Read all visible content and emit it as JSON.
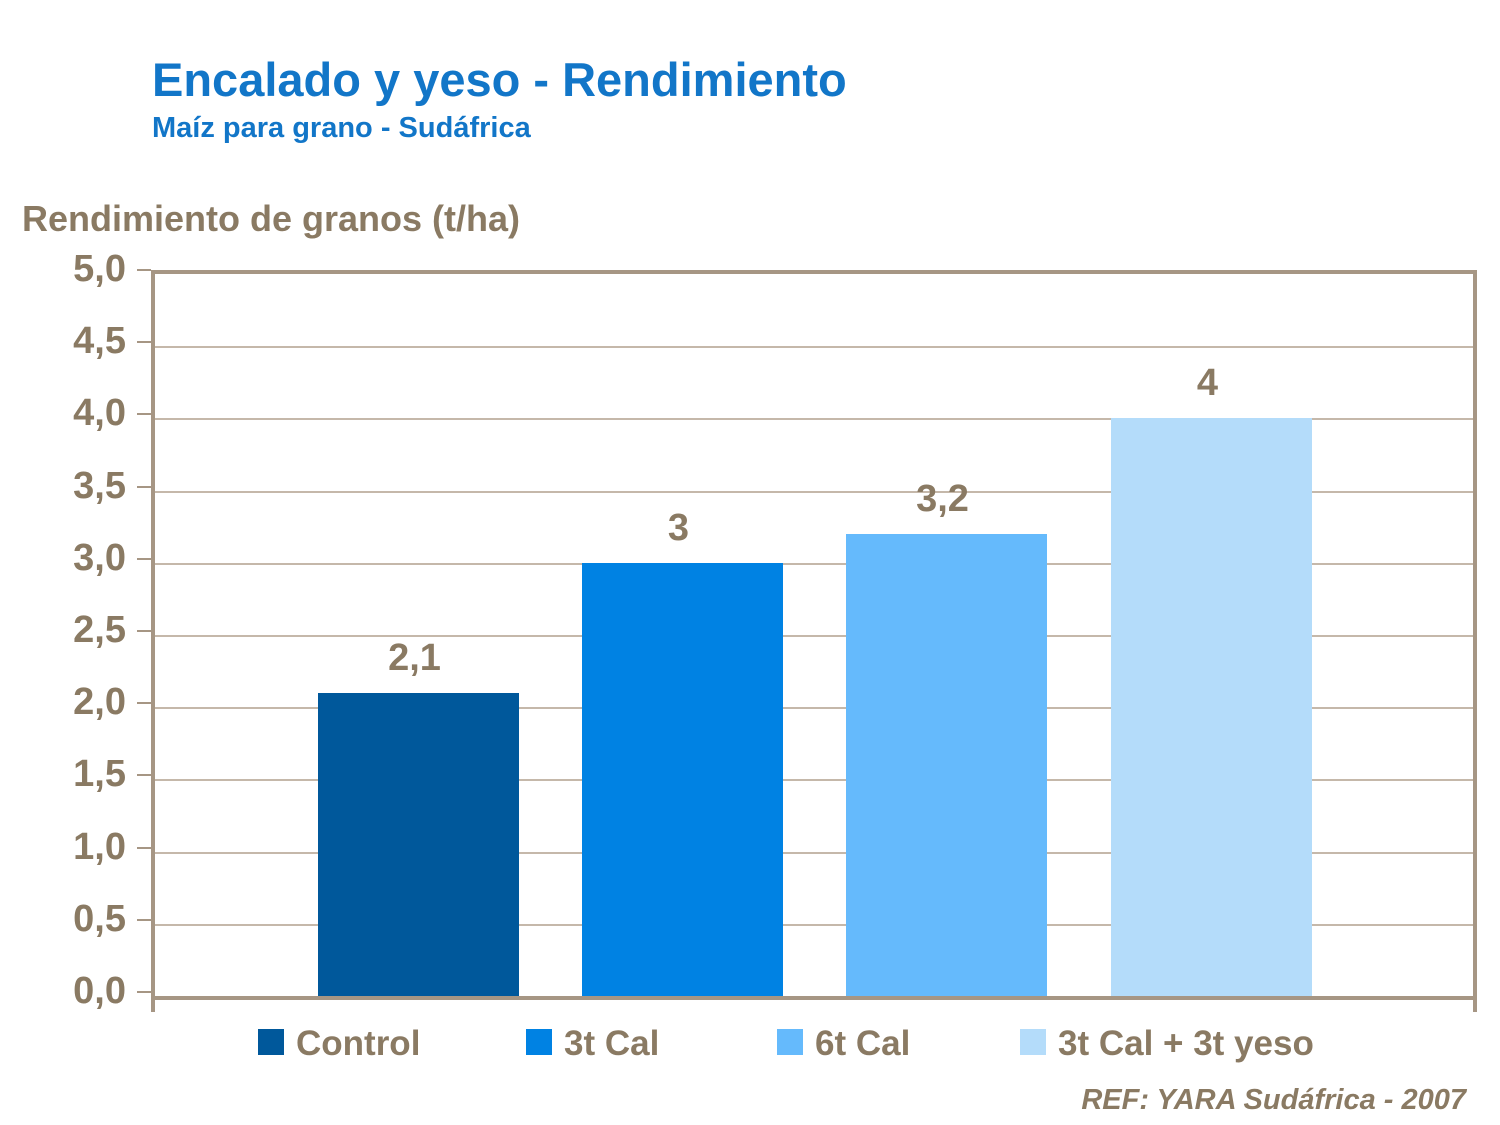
{
  "slide": {
    "title": "Encalado y yeso - Rendimiento",
    "subtitle": "Maíz para grano - Sudáfrica",
    "footer_ref": "REF: YARA Sudáfrica - 2007"
  },
  "chart_data": {
    "type": "bar",
    "title": "Rendimiento de granos (t/ha)",
    "ylabel": "Rendimiento de granos (t/ha)",
    "xlabel": "",
    "categories": [
      "Control",
      "3t Cal",
      "6t Cal",
      "3t Cal + 3t yeso"
    ],
    "values": [
      2.1,
      3,
      3.2,
      4
    ],
    "value_labels": [
      "2,1",
      "3",
      "3,2",
      "4"
    ],
    "bar_colors": [
      "#00589B",
      "#0082E3",
      "#65BAFC",
      "#B4DCFA"
    ],
    "ylim": [
      0,
      5
    ],
    "ytick_step": 0.5,
    "ytick_labels": [
      "0,0",
      "0,5",
      "1,0",
      "1,5",
      "2,0",
      "2,5",
      "3,0",
      "3,5",
      "4,0",
      "4,5",
      "5,0"
    ],
    "grid": "horizontal",
    "legend_position": "bottom"
  },
  "colors": {
    "title_blue": "#1276C8",
    "text_brown": "#8A7A63",
    "grid_line": "#C5B8AA",
    "plot_border": "#A69684",
    "background": "#FFFFFF"
  }
}
